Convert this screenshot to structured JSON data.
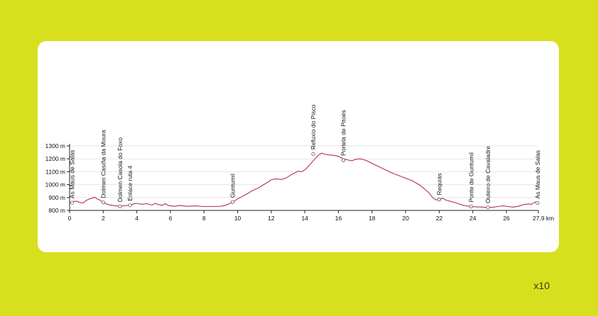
{
  "chart_data": {
    "type": "area",
    "xlabel_unit": "km",
    "ylabel_unit": "m",
    "xlim": [
      0,
      27.9
    ],
    "ylim": [
      800,
      1300
    ],
    "y_ticks": [
      {
        "value": 800,
        "label": "800 m"
      },
      {
        "value": 900,
        "label": "900 m"
      },
      {
        "value": 1000,
        "label": "1000 m"
      },
      {
        "value": 1100,
        "label": "1100 m"
      },
      {
        "value": 1200,
        "label": "1200 m"
      },
      {
        "value": 1300,
        "label": "1300 m"
      }
    ],
    "x_ticks": [
      {
        "value": 0,
        "label": "0"
      },
      {
        "value": 2,
        "label": "2"
      },
      {
        "value": 4,
        "label": "4"
      },
      {
        "value": 6,
        "label": "6"
      },
      {
        "value": 8,
        "label": "8"
      },
      {
        "value": 10,
        "label": "10"
      },
      {
        "value": 12,
        "label": "12"
      },
      {
        "value": 14,
        "label": "14"
      },
      {
        "value": 16,
        "label": "16"
      },
      {
        "value": 18,
        "label": "18"
      },
      {
        "value": 20,
        "label": "20"
      },
      {
        "value": 22,
        "label": "22"
      },
      {
        "value": 24,
        "label": "24"
      },
      {
        "value": 26,
        "label": "26"
      },
      {
        "value": 27.9,
        "label": "27,9 km"
      }
    ],
    "line_color": "#b0344c",
    "grid_color": "#e6e6e6",
    "profile": [
      [
        0,
        860
      ],
      [
        0.2,
        868
      ],
      [
        0.4,
        872
      ],
      [
        0.6,
        862
      ],
      [
        0.8,
        858
      ],
      [
        1.0,
        878
      ],
      [
        1.2,
        890
      ],
      [
        1.4,
        897
      ],
      [
        1.5,
        903
      ],
      [
        1.6,
        893
      ],
      [
        1.8,
        880
      ],
      [
        2.0,
        862
      ],
      [
        2.3,
        845
      ],
      [
        2.6,
        838
      ],
      [
        3.0,
        832
      ],
      [
        3.2,
        836
      ],
      [
        3.6,
        840
      ],
      [
        3.8,
        850
      ],
      [
        4.0,
        855
      ],
      [
        4.3,
        848
      ],
      [
        4.6,
        852
      ],
      [
        4.9,
        842
      ],
      [
        5.1,
        855
      ],
      [
        5.3,
        845
      ],
      [
        5.5,
        840
      ],
      [
        5.7,
        852
      ],
      [
        5.9,
        838
      ],
      [
        6.2,
        832
      ],
      [
        6.6,
        838
      ],
      [
        7.0,
        832
      ],
      [
        7.5,
        835
      ],
      [
        8.0,
        830
      ],
      [
        8.5,
        830
      ],
      [
        9.0,
        832
      ],
      [
        9.3,
        840
      ],
      [
        9.6,
        858
      ],
      [
        9.8,
        872
      ],
      [
        10.0,
        890
      ],
      [
        10.3,
        910
      ],
      [
        10.6,
        932
      ],
      [
        10.9,
        955
      ],
      [
        11.2,
        972
      ],
      [
        11.5,
        995
      ],
      [
        11.8,
        1020
      ],
      [
        12.0,
        1038
      ],
      [
        12.3,
        1045
      ],
      [
        12.6,
        1040
      ],
      [
        12.9,
        1052
      ],
      [
        13.2,
        1078
      ],
      [
        13.4,
        1090
      ],
      [
        13.6,
        1105
      ],
      [
        13.8,
        1100
      ],
      [
        14.0,
        1115
      ],
      [
        14.2,
        1140
      ],
      [
        14.4,
        1170
      ],
      [
        14.6,
        1200
      ],
      [
        14.8,
        1228
      ],
      [
        15.0,
        1244
      ],
      [
        15.2,
        1236
      ],
      [
        15.4,
        1230
      ],
      [
        15.7,
        1228
      ],
      [
        16.0,
        1220
      ],
      [
        16.3,
        1200
      ],
      [
        16.6,
        1190
      ],
      [
        16.8,
        1185
      ],
      [
        17.0,
        1195
      ],
      [
        17.2,
        1200
      ],
      [
        17.4,
        1198
      ],
      [
        17.7,
        1185
      ],
      [
        18.0,
        1165
      ],
      [
        18.4,
        1140
      ],
      [
        18.8,
        1115
      ],
      [
        19.2,
        1090
      ],
      [
        19.6,
        1070
      ],
      [
        20.0,
        1050
      ],
      [
        20.4,
        1030
      ],
      [
        20.8,
        1000
      ],
      [
        21.1,
        970
      ],
      [
        21.4,
        935
      ],
      [
        21.6,
        900
      ],
      [
        21.8,
        882
      ],
      [
        22.0,
        885
      ],
      [
        22.2,
        895
      ],
      [
        22.4,
        880
      ],
      [
        22.7,
        870
      ],
      [
        23.0,
        858
      ],
      [
        23.3,
        845
      ],
      [
        23.6,
        835
      ],
      [
        23.9,
        830
      ],
      [
        24.2,
        828
      ],
      [
        24.6,
        826
      ],
      [
        24.9,
        823
      ],
      [
        25.2,
        825
      ],
      [
        25.5,
        830
      ],
      [
        25.8,
        835
      ],
      [
        26.1,
        830
      ],
      [
        26.4,
        826
      ],
      [
        26.7,
        832
      ],
      [
        27.0,
        845
      ],
      [
        27.3,
        850
      ],
      [
        27.5,
        848
      ],
      [
        27.7,
        865
      ],
      [
        27.9,
        858
      ]
    ],
    "waypoints": [
      {
        "name": "As Maus de Salas",
        "x": 0.15,
        "y": 860
      },
      {
        "name": "Dolmen Casiña da Moura",
        "x": 2.0,
        "y": 862
      },
      {
        "name": "Dolmen Casola do Foxo",
        "x": 3.0,
        "y": 832
      },
      {
        "name": "Enlace ruta 4",
        "x": 3.6,
        "y": 840
      },
      {
        "name": "Guntumil",
        "x": 9.7,
        "y": 865
      },
      {
        "name": "Refuxio do Pisco",
        "x": 14.5,
        "y": 1238
      },
      {
        "name": "Portela de Pitoës",
        "x": 16.3,
        "y": 1190
      },
      {
        "name": "Requiás",
        "x": 22.0,
        "y": 885
      },
      {
        "name": "Ponte de Guntumil",
        "x": 23.9,
        "y": 830
      },
      {
        "name": "Outeiro de Cavaladre",
        "x": 24.9,
        "y": 823
      },
      {
        "name": "As Maus de Salas",
        "x": 27.85,
        "y": 858
      }
    ]
  },
  "footer": {
    "zoom_label": "x10"
  }
}
